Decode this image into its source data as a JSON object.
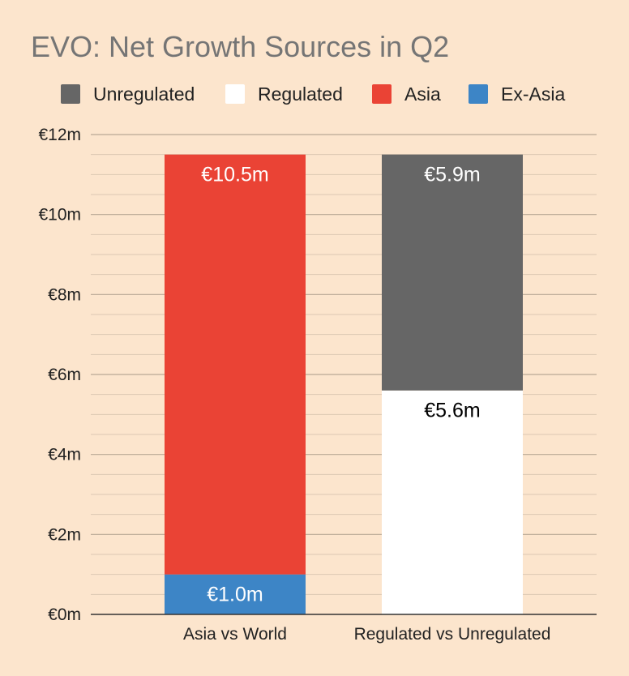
{
  "chart_data": {
    "type": "bar",
    "stacked": true,
    "title": "EVO: Net Growth Sources in Q2",
    "xlabel": "",
    "ylabel": "",
    "ylim": [
      0,
      12
    ],
    "yticks": [
      {
        "value": 0,
        "label": "€0m"
      },
      {
        "value": 2,
        "label": "€2m"
      },
      {
        "value": 4,
        "label": "€4m"
      },
      {
        "value": 6,
        "label": "€6m"
      },
      {
        "value": 8,
        "label": "€8m"
      },
      {
        "value": 10,
        "label": "€10m"
      },
      {
        "value": 12,
        "label": "€12m"
      }
    ],
    "minor_gridlines": true,
    "legend_position": "top",
    "legend": [
      {
        "name": "Unregulated",
        "color": "#666666"
      },
      {
        "name": "Regulated",
        "color": "#ffffff"
      },
      {
        "name": "Asia",
        "color": "#ea4335"
      },
      {
        "name": "Ex-Asia",
        "color": "#3d85c6"
      }
    ],
    "categories": [
      "Asia vs World",
      "Regulated vs Unregulated"
    ],
    "bars": [
      {
        "category": "Asia vs World",
        "segments": [
          {
            "series": "Ex-Asia",
            "value": 1.0,
            "label": "€1.0m",
            "color": "#3d85c6",
            "label_color": "#ffffff"
          },
          {
            "series": "Asia",
            "value": 10.5,
            "label": "€10.5m",
            "color": "#ea4335",
            "label_color": "#ffffff"
          }
        ]
      },
      {
        "category": "Regulated vs Unregulated",
        "segments": [
          {
            "series": "Regulated",
            "value": 5.6,
            "label": "€5.6m",
            "color": "#ffffff",
            "label_color": "#000000"
          },
          {
            "series": "Unregulated",
            "value": 5.9,
            "label": "€5.9m",
            "color": "#666666",
            "label_color": "#ffffff"
          }
        ]
      }
    ]
  }
}
